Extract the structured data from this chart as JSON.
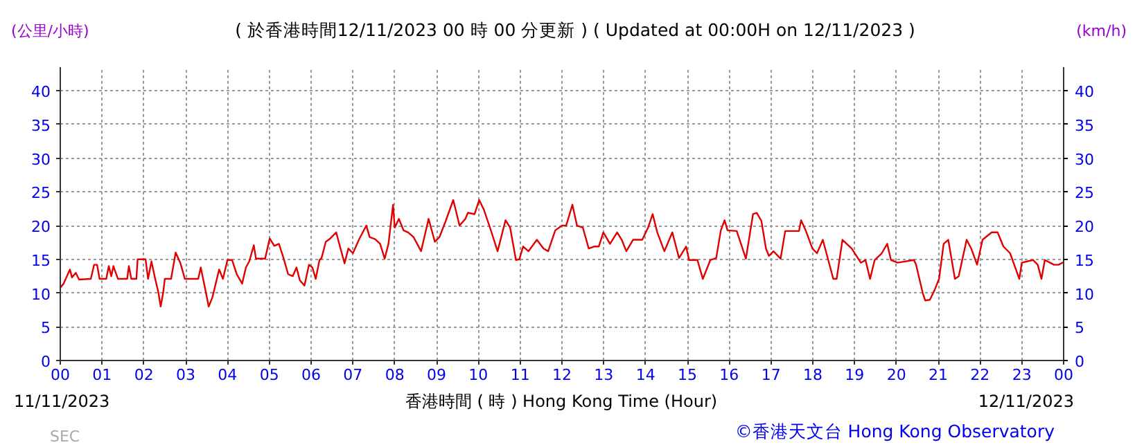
{
  "chart_data": {
    "type": "line",
    "title": "( 於香港時間12/11/2023 00 時 00 分更新 ) ( Updated at 00:00H on 12/11/2023 )",
    "ylabel": "(公里/小時)",
    "y2label": "(km/h)",
    "xlabel": "香港時間 ( 時 ) Hong Kong Time (Hour)",
    "annotations": [
      "11/11/2023",
      "12/11/2023",
      "©香港天文台 Hong Kong Observatory",
      "SEC"
    ],
    "xlim": [
      0,
      24
    ],
    "ylim": [
      0,
      43.5
    ],
    "y2lim": [
      0,
      43.5
    ],
    "xticks": [
      {
        "value": 0,
        "label": "00"
      },
      {
        "value": 1,
        "label": "01"
      },
      {
        "value": 2,
        "label": "02"
      },
      {
        "value": 3,
        "label": "03"
      },
      {
        "value": 4,
        "label": "04"
      },
      {
        "value": 5,
        "label": "05"
      },
      {
        "value": 6,
        "label": "06"
      },
      {
        "value": 7,
        "label": "07"
      },
      {
        "value": 8,
        "label": "08"
      },
      {
        "value": 9,
        "label": "09"
      },
      {
        "value": 10,
        "label": "10"
      },
      {
        "value": 11,
        "label": "11"
      },
      {
        "value": 12,
        "label": "12"
      },
      {
        "value": 13,
        "label": "13"
      },
      {
        "value": 14,
        "label": "14"
      },
      {
        "value": 15,
        "label": "15"
      },
      {
        "value": 16,
        "label": "16"
      },
      {
        "value": 17,
        "label": "17"
      },
      {
        "value": 18,
        "label": "18"
      },
      {
        "value": 19,
        "label": "19"
      },
      {
        "value": 20,
        "label": "20"
      },
      {
        "value": 21,
        "label": "21"
      },
      {
        "value": 22,
        "label": "22"
      },
      {
        "value": 23,
        "label": "23"
      },
      {
        "value": 24,
        "label": "00"
      }
    ],
    "yticks": [
      0,
      5,
      10,
      15,
      20,
      25,
      30,
      35,
      40
    ],
    "y2ticks": [
      0,
      5,
      10,
      15,
      20,
      25,
      30,
      35,
      40
    ],
    "grid": true,
    "line_style": "solid",
    "series": [
      {
        "color": "#e00000",
        "x": [
          0,
          0.08,
          0.23,
          0.28,
          0.37,
          0.45,
          0.73,
          0.81,
          0.88,
          0.94,
          1.1,
          1.16,
          1.22,
          1.27,
          1.38,
          1.6,
          1.64,
          1.7,
          1.82,
          1.85,
          2.04,
          2.1,
          2.18,
          2.27,
          2.35,
          2.4,
          2.46,
          2.5,
          2.65,
          2.76,
          2.87,
          2.98,
          3.3,
          3.36,
          3.45,
          3.55,
          3.64,
          3.8,
          3.89,
          4.0,
          4.11,
          4.22,
          4.35,
          4.44,
          4.52,
          4.63,
          4.68,
          4.9,
          5.01,
          5.12,
          5.23,
          5.34,
          5.45,
          5.56,
          5.65,
          5.73,
          5.84,
          5.95,
          6.03,
          6.11,
          6.2,
          6.25,
          6.35,
          6.44,
          6.6,
          6.66,
          6.8,
          6.89,
          7.0,
          7.15,
          7.32,
          7.4,
          7.53,
          7.65,
          7.76,
          7.85,
          7.96,
          8.0,
          8.1,
          8.21,
          8.32,
          8.45,
          8.63,
          8.81,
          8.96,
          9.07,
          9.22,
          9.4,
          9.55,
          9.69,
          9.75,
          9.91,
          10.02,
          10.13,
          10.3,
          10.46,
          10.65,
          10.76,
          10.9,
          10.98,
          11.07,
          11.2,
          11.4,
          11.56,
          11.67,
          11.84,
          12.0,
          12.1,
          12.25,
          12.36,
          12.5,
          12.64,
          12.77,
          12.88,
          12.99,
          13.15,
          13.32,
          13.43,
          13.54,
          13.7,
          13.92,
          14.06,
          14.17,
          14.28,
          14.45,
          14.64,
          14.8,
          14.97,
          15.04,
          15.24,
          15.37,
          15.55,
          15.69,
          15.8,
          15.89,
          15.96,
          16.18,
          16.4,
          16.57,
          16.66,
          16.77,
          16.88,
          16.95,
          17.06,
          17.23,
          17.34,
          17.67,
          17.72,
          17.83,
          17.99,
          18.1,
          18.24,
          18.49,
          18.57,
          18.71,
          18.93,
          19.15,
          19.26,
          19.37,
          19.48,
          19.65,
          19.78,
          19.87,
          20.03,
          20.42,
          20.47,
          20.63,
          20.69,
          20.8,
          20.91,
          21.02,
          21.13,
          21.24,
          21.4,
          21.49,
          21.68,
          21.79,
          21.93,
          22.06,
          22.28,
          22.42,
          22.56,
          22.72,
          22.94,
          23.0,
          23.27,
          23.38,
          23.47,
          23.55,
          23.77,
          23.88,
          24.0
        ],
        "values": [
          10.8,
          11.4,
          13.5,
          12.3,
          13.0,
          12.0,
          12.1,
          14.2,
          14.2,
          12.1,
          12.1,
          14.0,
          12.5,
          14.0,
          12.1,
          12.1,
          14.0,
          12.1,
          12.1,
          15.0,
          15.0,
          12.1,
          14.7,
          12.1,
          10.0,
          8.0,
          10.0,
          12.1,
          12.1,
          16.0,
          14.5,
          12.1,
          12.1,
          13.8,
          11.1,
          8.0,
          9.4,
          13.5,
          12.1,
          14.9,
          14.9,
          12.8,
          11.4,
          13.8,
          14.7,
          17.1,
          15.1,
          15.1,
          18.1,
          17.0,
          17.3,
          15.2,
          12.8,
          12.5,
          13.8,
          11.9,
          11.1,
          14.2,
          13.8,
          12.1,
          14.9,
          15.2,
          17.6,
          18.0,
          19.0,
          17.6,
          14.4,
          16.6,
          15.9,
          18.0,
          20.0,
          18.3,
          18.0,
          17.3,
          15.1,
          17.3,
          23.1,
          19.7,
          21.0,
          19.3,
          19.0,
          18.3,
          16.2,
          21.0,
          17.6,
          18.3,
          20.7,
          23.8,
          20.0,
          21.0,
          21.9,
          21.7,
          23.8,
          22.4,
          19.3,
          16.2,
          20.8,
          19.7,
          14.9,
          15.0,
          16.9,
          16.2,
          17.9,
          16.6,
          16.2,
          19.3,
          20.0,
          20.0,
          23.1,
          20.0,
          19.7,
          16.6,
          16.9,
          16.9,
          19.0,
          17.3,
          19.0,
          17.9,
          16.2,
          17.9,
          17.9,
          19.7,
          21.7,
          19.0,
          16.2,
          19.0,
          15.2,
          16.9,
          14.9,
          14.9,
          12.1,
          14.9,
          15.2,
          19.3,
          20.8,
          19.3,
          19.2,
          15.1,
          21.7,
          21.9,
          20.7,
          16.6,
          15.5,
          16.2,
          15.1,
          19.2,
          19.2,
          20.8,
          19.3,
          16.6,
          15.9,
          17.9,
          12.1,
          12.1,
          17.9,
          16.6,
          14.5,
          14.9,
          12.1,
          14.9,
          15.9,
          17.3,
          14.9,
          14.5,
          14.9,
          14.2,
          10.0,
          8.9,
          9.0,
          10.4,
          12.1,
          17.3,
          17.9,
          12.1,
          12.5,
          17.9,
          16.6,
          14.2,
          17.9,
          19.0,
          19.0,
          16.9,
          15.9,
          12.1,
          14.5,
          14.9,
          14.2,
          12.1,
          14.9,
          14.2,
          14.2,
          14.6
        ]
      }
    ]
  }
}
